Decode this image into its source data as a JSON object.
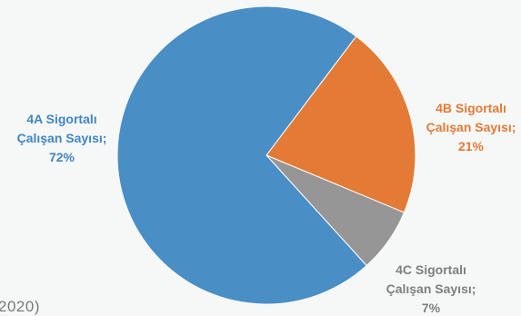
{
  "chart_data": {
    "type": "pie",
    "slices": [
      {
        "label_lines": [
          "4A Sigortalı",
          "Çalışan Sayısı;",
          "72%"
        ],
        "value": 72,
        "color": "#4a8ec6"
      },
      {
        "label_lines": [
          "4B Sigortalı",
          "Çalışan Sayısı;",
          "21%"
        ],
        "value": 21,
        "color": "#e37a36"
      },
      {
        "label_lines": [
          "4C Sigortalı",
          "Çalışan Sayısı;",
          "7%"
        ],
        "value": 7,
        "color": "#969696"
      }
    ],
    "label_colors": [
      "#3f86c5",
      "#e37a36",
      "#7f7f7f"
    ]
  },
  "footer": {
    "text": "2020)"
  }
}
